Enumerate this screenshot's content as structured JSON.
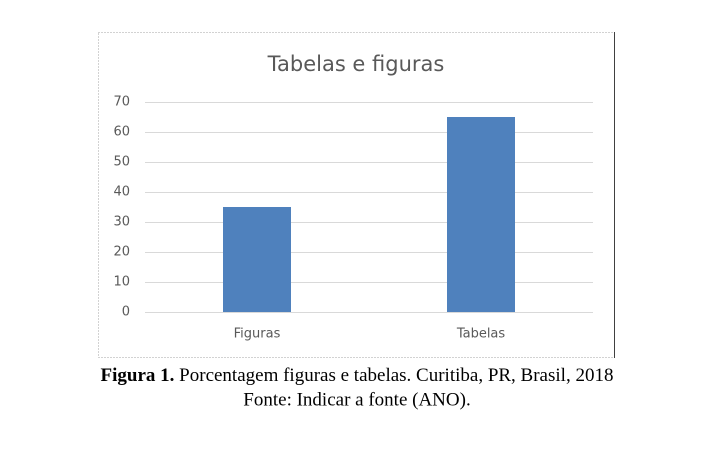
{
  "chart_data": {
    "type": "bar",
    "title": "Tabelas e figuras",
    "categories": [
      "Figuras",
      "Tabelas"
    ],
    "values": [
      35,
      65
    ],
    "color": "#4f81bd",
    "ylim": [
      0,
      70
    ],
    "yticks": [
      0,
      10,
      20,
      30,
      40,
      50,
      60,
      70
    ],
    "grid": true
  },
  "caption": {
    "label": "Figura 1.",
    "text": "Porcentagem figuras e tabelas. Curitiba, PR, Brasil, 2018",
    "source": "Fonte: Indicar a fonte (ANO)."
  }
}
